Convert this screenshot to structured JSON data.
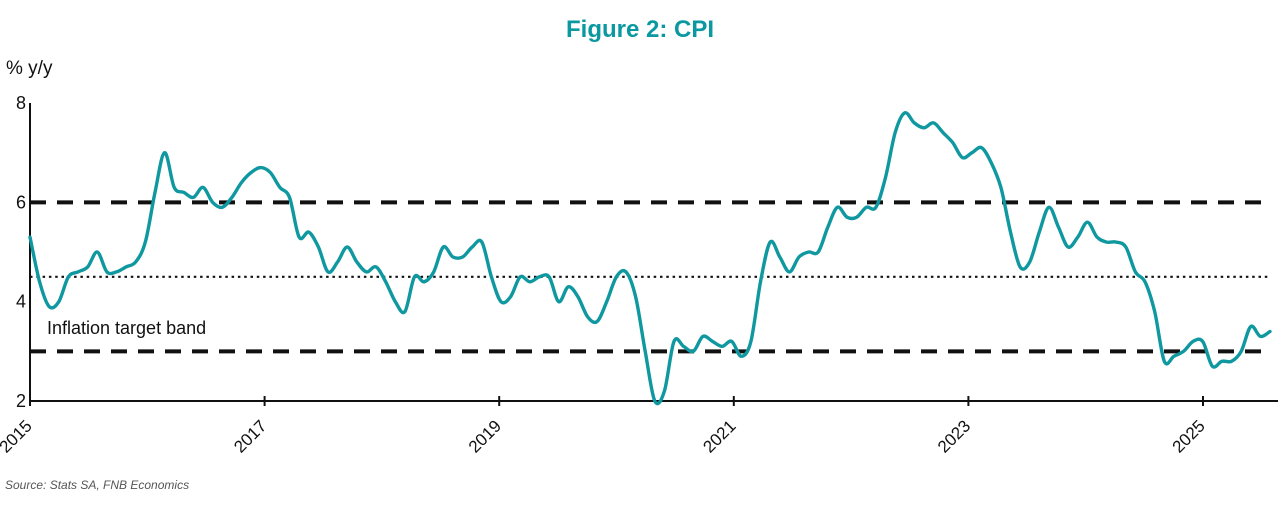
{
  "chart_data": {
    "type": "line",
    "title": "Figure 2: CPI",
    "title_color": "#0a99a1",
    "ylabel": "% y/y",
    "ylim": [
      2,
      8
    ],
    "y_ticks": [
      8,
      6,
      4,
      2
    ],
    "x_tick_years": [
      2015,
      2017,
      2019,
      2021,
      2023,
      2025
    ],
    "grid": false,
    "legend": "none",
    "line_color": "#0f98a0",
    "axis_color": "#111111",
    "reference_lines": [
      {
        "value": 6.0,
        "style": "dashed",
        "color": "#111111",
        "name": "target-band-upper-line"
      },
      {
        "value": 4.5,
        "style": "dotted",
        "color": "#111111",
        "name": "target-band-midpoint-line"
      },
      {
        "value": 3.0,
        "style": "dashed",
        "color": "#111111",
        "name": "target-band-lower-line"
      }
    ],
    "annotation": {
      "text": "Inflation target band"
    },
    "source": "Source: Stats SA, FNB Economics",
    "series": [
      {
        "name": "CPI (% y/y)",
        "frequency": "monthly",
        "start_month": "2014-12",
        "end_month": "2025-09",
        "values": [
          5.3,
          4.4,
          3.9,
          4.0,
          4.5,
          4.6,
          4.7,
          5.0,
          4.6,
          4.6,
          4.7,
          4.8,
          5.2,
          6.2,
          7.0,
          6.3,
          6.2,
          6.1,
          6.3,
          6.0,
          5.9,
          6.1,
          6.4,
          6.6,
          6.7,
          6.6,
          6.3,
          6.1,
          5.3,
          5.4,
          5.1,
          4.6,
          4.8,
          5.1,
          4.8,
          4.6,
          4.7,
          4.4,
          4.0,
          3.8,
          4.5,
          4.4,
          4.6,
          5.1,
          4.9,
          4.9,
          5.1,
          5.2,
          4.5,
          4.0,
          4.1,
          4.5,
          4.4,
          4.5,
          4.5,
          4.0,
          4.3,
          4.1,
          3.7,
          3.6,
          4.0,
          4.5,
          4.6,
          4.1,
          3.0,
          2.0,
          2.2,
          3.2,
          3.1,
          3.0,
          3.3,
          3.2,
          3.1,
          3.2,
          2.9,
          3.2,
          4.4,
          5.2,
          4.9,
          4.6,
          4.9,
          5.0,
          5.0,
          5.5,
          5.9,
          5.7,
          5.7,
          5.9,
          5.9,
          6.5,
          7.4,
          7.8,
          7.6,
          7.5,
          7.6,
          7.4,
          7.2,
          6.9,
          7.0,
          7.1,
          6.8,
          6.3,
          5.4,
          4.7,
          4.8,
          5.4,
          5.9,
          5.5,
          5.1,
          5.3,
          5.6,
          5.3,
          5.2,
          5.2,
          5.1,
          4.6,
          4.4,
          3.8,
          2.8,
          2.9,
          3.0,
          3.2,
          3.2,
          2.7,
          2.8,
          2.8,
          3.0,
          3.5,
          3.3,
          3.4
        ]
      }
    ]
  }
}
